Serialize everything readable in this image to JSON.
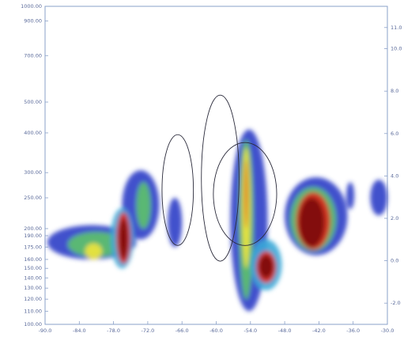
{
  "chart_data": {
    "type": "heatmap",
    "xlim": [
      -90,
      -30
    ],
    "xticks": [
      {
        "value": -90,
        "label": "-90.0"
      },
      {
        "value": -84,
        "label": "-84.0"
      },
      {
        "value": -78,
        "label": "-78.0"
      },
      {
        "value": -72,
        "label": "-72.0"
      },
      {
        "value": -66,
        "label": "-66.0"
      },
      {
        "value": -60,
        "label": "-60.0"
      },
      {
        "value": -54,
        "label": "-54.0"
      },
      {
        "value": -48,
        "label": "-48.0"
      },
      {
        "value": -42,
        "label": "-42.0"
      },
      {
        "value": -36,
        "label": "-36.0"
      },
      {
        "value": -30,
        "label": "-30.0"
      }
    ],
    "ylim": [
      100,
      1000
    ],
    "log_y": true,
    "yticks": [
      {
        "value": 100,
        "label": "100.00"
      },
      {
        "value": 110,
        "label": "110.00"
      },
      {
        "value": 120,
        "label": "120.00"
      },
      {
        "value": 130,
        "label": "130.00"
      },
      {
        "value": 140,
        "label": "140.00"
      },
      {
        "value": 150,
        "label": "150.00"
      },
      {
        "value": 160,
        "label": "160.00"
      },
      {
        "value": 175,
        "label": "175.00"
      },
      {
        "value": 190,
        "label": "190.00"
      },
      {
        "value": 200,
        "label": "200.00"
      },
      {
        "value": 250,
        "label": "250.00"
      },
      {
        "value": 300,
        "label": "300.00"
      },
      {
        "value": 400,
        "label": "400.00"
      },
      {
        "value": 500,
        "label": "500.00"
      },
      {
        "value": 700,
        "label": "700.00"
      },
      {
        "value": 900,
        "label": "900.00"
      },
      {
        "value": 1000,
        "label": "1000.00"
      }
    ],
    "y2lim": [
      -3,
      12
    ],
    "y2ticks": [
      {
        "value": -2,
        "label": "-2.0"
      },
      {
        "value": 0,
        "label": "0.0"
      },
      {
        "value": 2,
        "label": "2.0"
      },
      {
        "value": 4,
        "label": "4.0"
      },
      {
        "value": 6,
        "label": "6.0"
      },
      {
        "value": 8,
        "label": "8.0"
      },
      {
        "value": 10,
        "label": "10.0"
      },
      {
        "value": 11,
        "label": "11.0"
      }
    ],
    "colors": [
      "#2f3fc6",
      "#3aa8d8",
      "#5cc46a",
      "#f2e63a",
      "#e0281c",
      "#7a0b08"
    ],
    "contour_color": "#2a2a3a",
    "blobs": [
      {
        "x": [
          -89.6,
          -74
        ],
        "y": [
          160,
          205
        ],
        "level": 0
      },
      {
        "x": [
          -86,
          -76
        ],
        "y": [
          163,
          195
        ],
        "level": 2
      },
      {
        "x": [
          -83,
          -80
        ],
        "y": [
          160,
          180
        ],
        "level": 3
      },
      {
        "x": [
          -76.5,
          -70
        ],
        "y": [
          185,
          305
        ],
        "level": 0
      },
      {
        "x": [
          -74,
          -71.5
        ],
        "y": [
          200,
          280
        ],
        "level": 2
      },
      {
        "x": [
          -78.5,
          -74.5
        ],
        "y": [
          150,
          232
        ],
        "level": 1
      },
      {
        "x": [
          -77.5,
          -75
        ],
        "y": [
          155,
          225
        ],
        "level": 4
      },
      {
        "x": [
          -77,
          -75.5
        ],
        "y": [
          160,
          215
        ],
        "level": 5
      },
      {
        "x": [
          -68.5,
          -66
        ],
        "y": [
          175,
          250
        ],
        "level": 0
      },
      {
        "x": [
          -57.5,
          -51
        ],
        "y": [
          110,
          410
        ],
        "level": 0
      },
      {
        "x": [
          -56,
          -53.5
        ],
        "y": [
          120,
          380
        ],
        "level": 2
      },
      {
        "x": [
          -55.5,
          -54
        ],
        "y": [
          150,
          360
        ],
        "level": 3
      },
      {
        "x": [
          -55,
          -54.5
        ],
        "y": [
          200,
          330
        ],
        "level": 4
      },
      {
        "x": [
          -54,
          -48.5
        ],
        "y": [
          128,
          185
        ],
        "level": 1
      },
      {
        "x": [
          -53,
          -49.5
        ],
        "y": [
          135,
          170
        ],
        "level": 4
      },
      {
        "x": [
          -52.5,
          -50
        ],
        "y": [
          140,
          165
        ],
        "level": 5
      },
      {
        "x": [
          -48,
          -37
        ],
        "y": [
          165,
          290
        ],
        "level": 0
      },
      {
        "x": [
          -47,
          -39
        ],
        "y": [
          170,
          270
        ],
        "level": 2
      },
      {
        "x": [
          -46,
          -40
        ],
        "y": [
          172,
          260
        ],
        "level": 4
      },
      {
        "x": [
          -45.5,
          -41
        ],
        "y": [
          175,
          250
        ],
        "level": 5
      },
      {
        "x": [
          -33,
          -30
        ],
        "y": [
          220,
          285
        ],
        "level": 0
      },
      {
        "x": [
          -37.2,
          -35.8
        ],
        "y": [
          230,
          280
        ],
        "level": 0
      }
    ],
    "contours": [
      {
        "x": [
          -69.5,
          -64
        ],
        "y": [
          177,
          395
        ]
      },
      {
        "x": [
          -62.6,
          -56
        ],
        "y": [
          158,
          526
        ]
      },
      {
        "x": [
          -60.5,
          -49.4
        ],
        "y": [
          177,
          373
        ]
      }
    ]
  }
}
